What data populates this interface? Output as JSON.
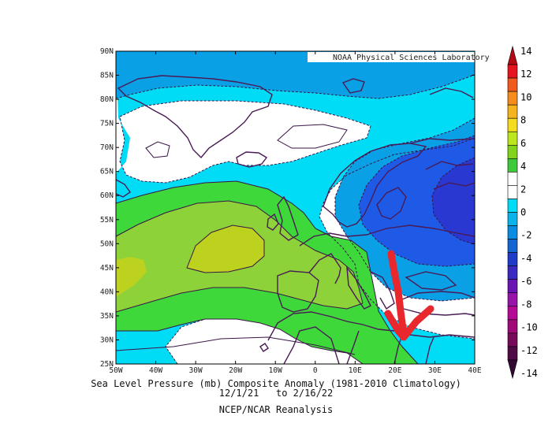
{
  "map": {
    "credit": "NOAA Physical Sciences Laboratory",
    "lat_labels": [
      "90N",
      "85N",
      "80N",
      "75N",
      "70N",
      "65N",
      "60N",
      "55N",
      "50N",
      "45N",
      "40N",
      "35N",
      "30N",
      "25N"
    ],
    "lon_labels": [
      "50W",
      "40W",
      "30W",
      "20W",
      "10W",
      "0",
      "10E",
      "20E",
      "30E",
      "40E"
    ],
    "extent": {
      "lon": [
        -50,
        40
      ],
      "lat": [
        25,
        90
      ]
    },
    "contour_interval_mb": 2,
    "colors": {
      "neg2": "#00dcf5",
      "neg4": "#0aa0e6",
      "neg6": "#1e5ae6",
      "neg8": "#2838d0",
      "pos2": "#3ed83a",
      "pos4": "#8ed23a",
      "pos6": "#bcd21e",
      "coast": "#4a1a55",
      "arrow": "#e8282c"
    }
  },
  "colorbar": {
    "ticks": [
      "14",
      "12",
      "10",
      "8",
      "6",
      "4",
      "2",
      "0",
      "-2",
      "-4",
      "-6",
      "-8",
      "-10",
      "-12",
      "-14"
    ],
    "colors": [
      "#b40a14",
      "#e6141e",
      "#f05a1e",
      "#f58c1e",
      "#f5b41e",
      "#f5dc1e",
      "#bee61e",
      "#82d21e",
      "#3ec83c",
      "#ffffff",
      "#ffffff",
      "#00dcf5",
      "#0ab4eb",
      "#0a8ce1",
      "#1464d2",
      "#1e3cc8",
      "#3a28c0",
      "#6a14b4",
      "#9614a8",
      "#b40a96",
      "#a00a78",
      "#780a5a",
      "#500a46",
      "#320a32"
    ]
  },
  "caption": {
    "line1": "Sea Level Pressure (mb) Composite Anomaly (1981-2010 Climatology)",
    "line2": "12/1/21   to 2/16/22",
    "line3": "NCEP/NCAR Reanalysis"
  }
}
